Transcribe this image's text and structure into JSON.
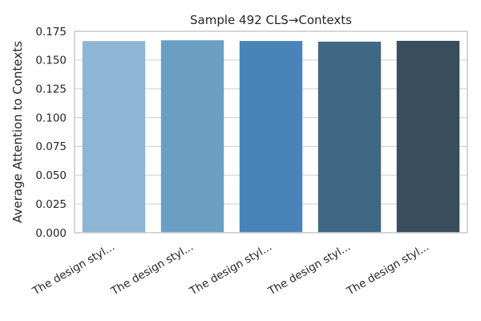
{
  "chart_data": {
    "type": "bar",
    "title": "Sample 492 CLS→Contexts",
    "xlabel": "",
    "ylabel": "Average Attention to Contexts",
    "categories": [
      "The design styl...",
      "The design styl...",
      "The design styl...",
      "The design styl...",
      "The design styl..."
    ],
    "values": [
      0.1665,
      0.1672,
      0.1666,
      0.166,
      0.1667
    ],
    "ylim": [
      0,
      0.175
    ],
    "yticks": [
      "0.000",
      "0.025",
      "0.050",
      "0.075",
      "0.100",
      "0.125",
      "0.150",
      "0.175"
    ],
    "grid": true,
    "colors": [
      "#8db6d5",
      "#6a9fc3",
      "#4984b8",
      "#3f6885",
      "#394d5c"
    ]
  }
}
